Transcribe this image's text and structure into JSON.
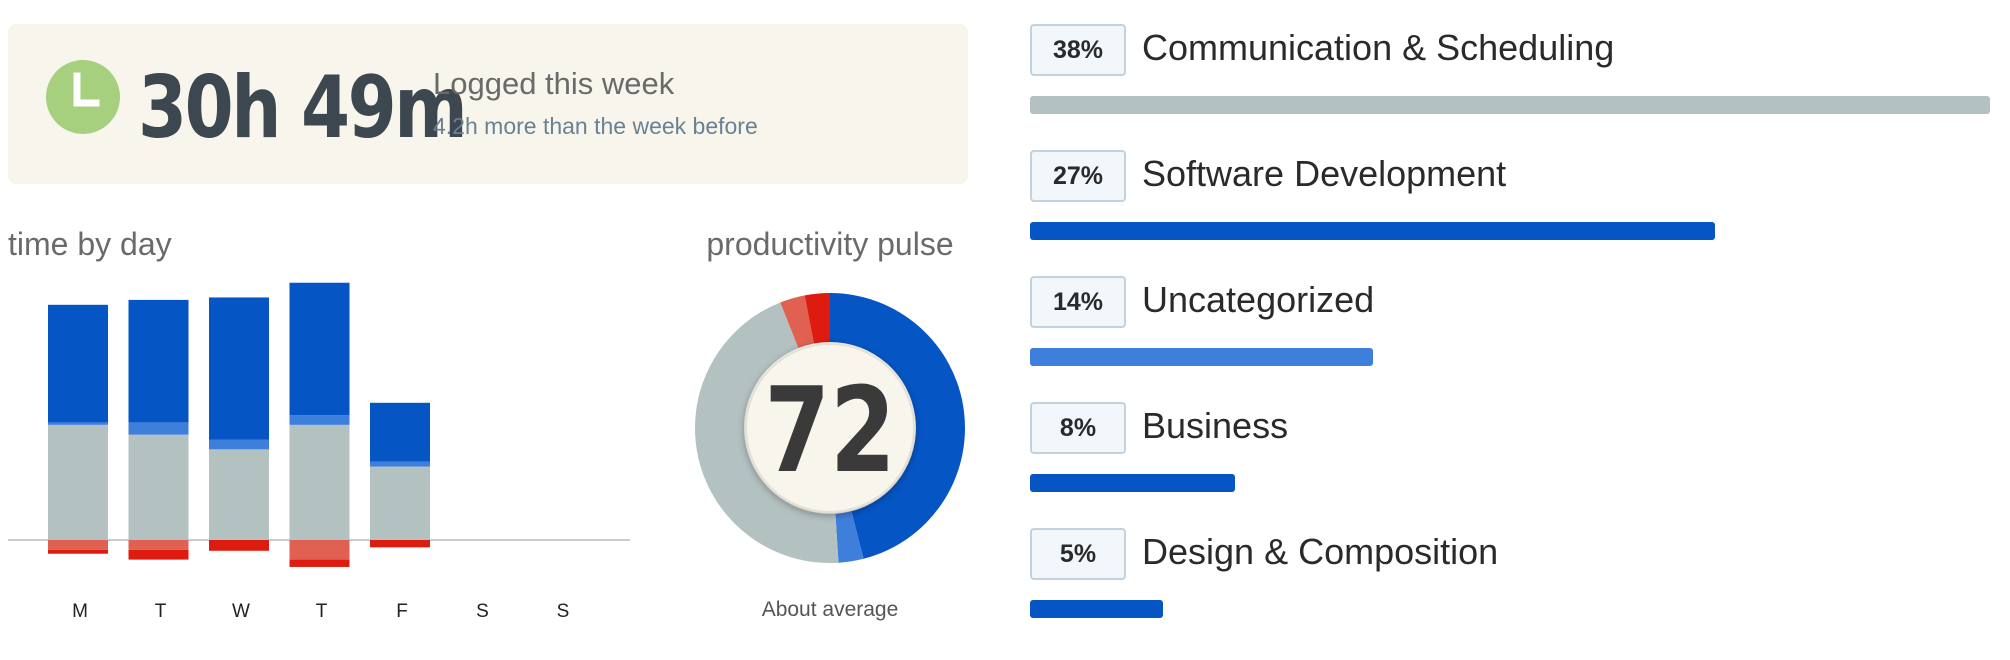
{
  "summary": {
    "total_time": "30h 49m",
    "label": "Logged this week",
    "comparison": "4.2h more than the week before",
    "icon": "clock-icon",
    "icon_color": "#a6cf7e"
  },
  "colors": {
    "very_productive": "#0555c4",
    "productive": "#3f7fdc",
    "neutral": "#b3c1c1",
    "distracting": "#e06152",
    "very_distracting": "#dd1c0f"
  },
  "chart_data": [
    {
      "type": "bar",
      "title": "time by day",
      "stacked": true,
      "categories": [
        "M",
        "T",
        "W",
        "T",
        "F",
        "S",
        "S"
      ],
      "series": [
        {
          "values": [
            2.4,
            2.5,
            2.9,
            2.7,
            1.2,
            0,
            0
          ]
        },
        {
          "values": [
            0.05,
            0.25,
            0.2,
            0.2,
            0.1,
            0,
            0
          ]
        },
        {
          "values": [
            2.35,
            2.15,
            1.85,
            2.35,
            1.5,
            0,
            0
          ]
        },
        {
          "values": [
            -0.2,
            -0.2,
            0,
            -0.4,
            0,
            0,
            0
          ]
        },
        {
          "values": [
            -0.08,
            -0.2,
            -0.22,
            -0.15,
            -0.15,
            0,
            0
          ]
        }
      ],
      "ylim": [
        -0.6,
        5.5
      ],
      "grid": false,
      "baseline": true
    },
    {
      "type": "pie",
      "title": "productivity pulse",
      "donut": true,
      "score": "72",
      "caption": "About average",
      "slices": [
        {
          "value": 46,
          "color": "#0555c4"
        },
        {
          "value": 3,
          "color": "#3f7fdc"
        },
        {
          "value": 45,
          "color": "#b3c1c1"
        },
        {
          "value": 3,
          "color": "#e06152"
        },
        {
          "value": 3,
          "color": "#dd1c0f"
        }
      ]
    },
    {
      "type": "bar",
      "orientation": "horizontal",
      "categories": [
        "Communication & Scheduling",
        "Software Development",
        "Uncategorized",
        "Business",
        "Design & Composition"
      ],
      "values": [
        38,
        27,
        14,
        8,
        5
      ],
      "labels": [
        "38%",
        "27%",
        "14%",
        "8%",
        "5%"
      ],
      "bar_lengths_relative": [
        1.0,
        0.714,
        0.357,
        0.214,
        0.139
      ],
      "colors": [
        "#b3c1c1",
        "#0555c4",
        "#3f7fdc",
        "#0555c4",
        "#0555c4"
      ]
    }
  ]
}
